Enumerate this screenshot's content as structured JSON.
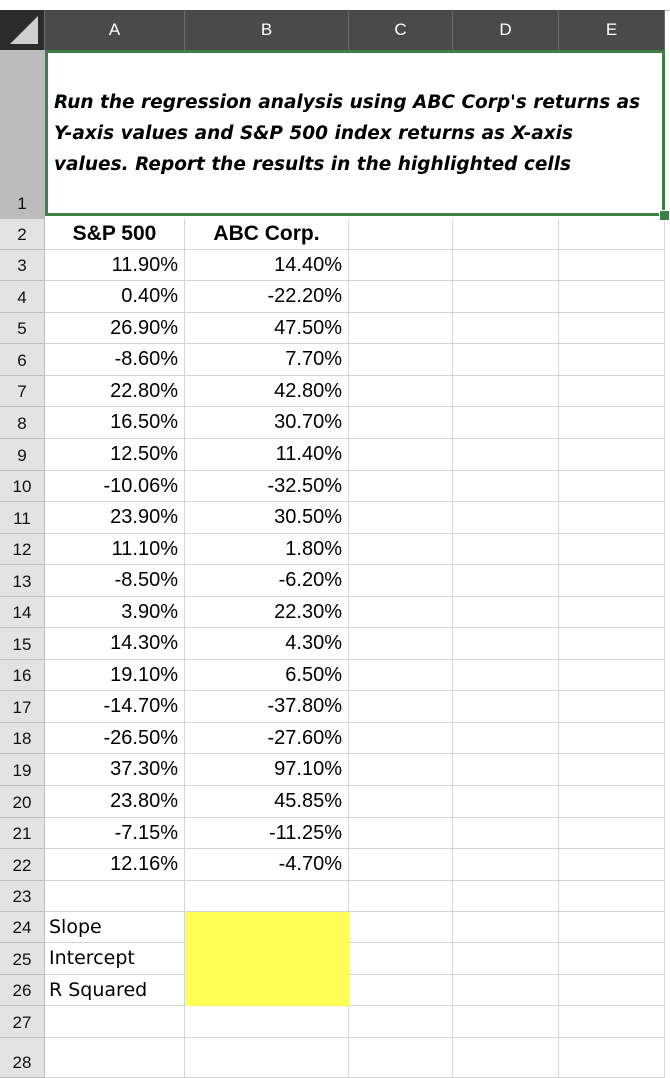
{
  "columns": [
    "A",
    "B",
    "C",
    "D",
    "E"
  ],
  "rows": [
    "1",
    "2",
    "3",
    "4",
    "5",
    "6",
    "7",
    "8",
    "9",
    "10",
    "11",
    "12",
    "13",
    "14",
    "15",
    "16",
    "17",
    "18",
    "19",
    "20",
    "21",
    "22",
    "23",
    "24",
    "25",
    "26",
    "27",
    "28"
  ],
  "instruction": "Run the regression analysis using ABC Corp's returns as Y-axis values and S&P 500 index returns as X-axis values. Report the results in the highlighted cells",
  "headers": {
    "a": "S&P 500",
    "b": "ABC Corp."
  },
  "data": [
    [
      "11.90%",
      "14.40%"
    ],
    [
      "0.40%",
      "-22.20%"
    ],
    [
      "26.90%",
      "47.50%"
    ],
    [
      "-8.60%",
      "7.70%"
    ],
    [
      "22.80%",
      "42.80%"
    ],
    [
      "16.50%",
      "30.70%"
    ],
    [
      "12.50%",
      "11.40%"
    ],
    [
      "-10.06%",
      "-32.50%"
    ],
    [
      "23.90%",
      "30.50%"
    ],
    [
      "11.10%",
      "1.80%"
    ],
    [
      "-8.50%",
      "-6.20%"
    ],
    [
      "3.90%",
      "22.30%"
    ],
    [
      "14.30%",
      "4.30%"
    ],
    [
      "19.10%",
      "6.50%"
    ],
    [
      "-14.70%",
      "-37.80%"
    ],
    [
      "-26.50%",
      "-27.60%"
    ],
    [
      "37.30%",
      "97.10%"
    ],
    [
      "23.80%",
      "45.85%"
    ],
    [
      "-7.15%",
      "-11.25%"
    ],
    [
      "12.16%",
      "-4.70%"
    ]
  ],
  "results": [
    "Slope",
    "Intercept",
    "R Squared"
  ],
  "colors": {
    "highlight": "#ffff55",
    "selection_border": "#3f7f45",
    "header_bg": "#4a4a4a"
  }
}
